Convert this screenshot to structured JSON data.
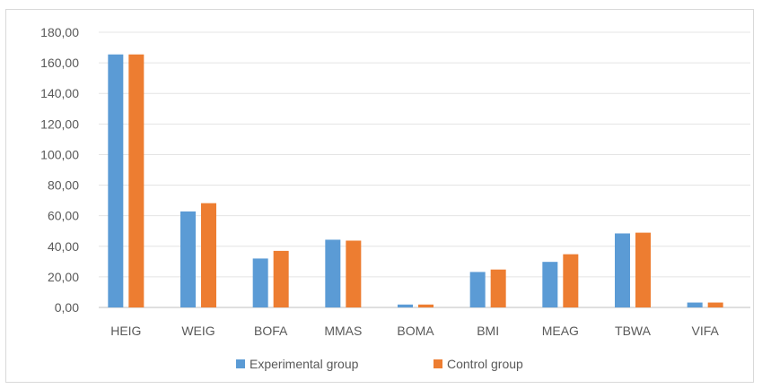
{
  "chart_data": {
    "type": "bar",
    "categories": [
      "HEIG",
      "WEIG",
      "BOFA",
      "MMAS",
      "BOMA",
      "BMI",
      "MEAG",
      "TBWA",
      "VIFA"
    ],
    "series": [
      {
        "name": "Experimental group",
        "color": "#5b9bd5",
        "values": [
          165.5,
          62.8,
          32.0,
          44.3,
          1.9,
          23.2,
          29.8,
          48.4,
          3.2
        ]
      },
      {
        "name": "Control group",
        "color": "#ed7d31",
        "values": [
          165.5,
          68.2,
          37.0,
          43.7,
          1.9,
          24.8,
          34.8,
          48.9,
          3.2
        ]
      }
    ],
    "ylim": [
      0,
      180
    ],
    "yticks": [
      "0,00",
      "20,00",
      "40,00",
      "60,00",
      "80,00",
      "100,00",
      "120,00",
      "140,00",
      "160,00",
      "180,00"
    ],
    "title": "",
    "xlabel": "",
    "ylabel": "",
    "grid": true,
    "legend_position": "bottom"
  }
}
